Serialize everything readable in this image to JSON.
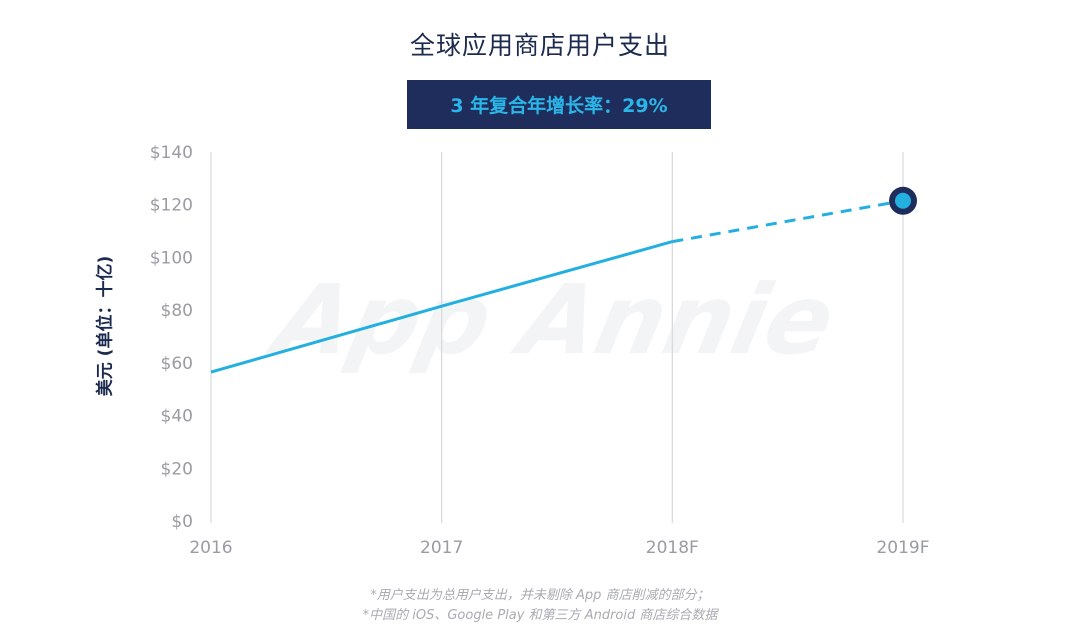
{
  "chart_data": {
    "type": "line",
    "title": "全球应用商店用户支出",
    "subtitle": "3 年复合年增长率：29%",
    "ylabel": "美元 (单位：十亿)",
    "xlabel": "",
    "categories": [
      "2016",
      "2017",
      "2018F",
      "2019F"
    ],
    "series": [
      {
        "values": [
          56.5,
          81.5,
          106,
          121.5
        ]
      }
    ],
    "forecast_from_index": 2,
    "highlight_index": 3,
    "ylim": [
      0,
      140
    ],
    "yticks": [
      0,
      20,
      40,
      60,
      80,
      100,
      120,
      140
    ],
    "ytick_labels": [
      "$0",
      "$20",
      "$40",
      "$60",
      "$80",
      "$100",
      "$120",
      "$140"
    ],
    "grid": "vertical",
    "colors": {
      "line": "#23b0e0",
      "marker_ring": "#1f2d5c",
      "grid": "#d6d8dd",
      "badge_bg": "#1f2d5c",
      "badge_text": "#2ab6e8"
    },
    "watermark": "App Annie",
    "footnotes": [
      "*用户支出为总用户支出，并未剔除 App 商店削减的部分；",
      "*中国的 iOS、Google Play 和第三方 Android 商店综合数据"
    ]
  }
}
